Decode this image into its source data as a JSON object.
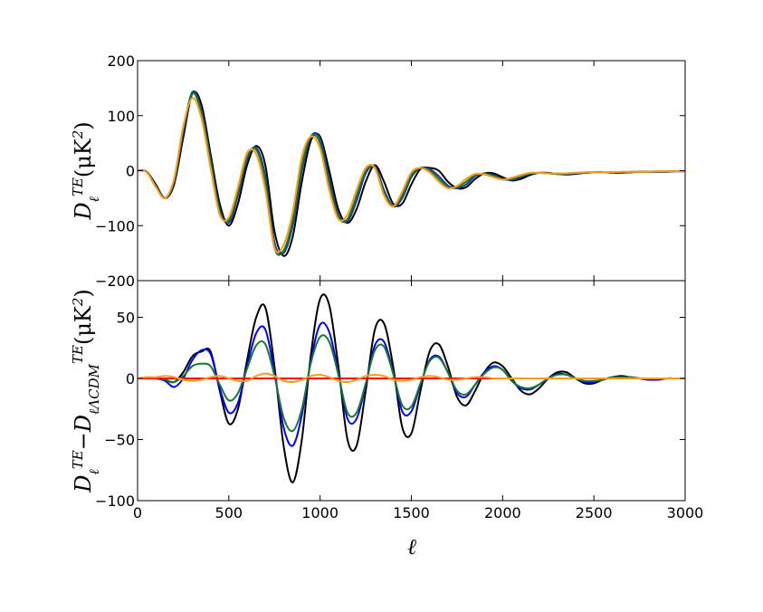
{
  "chart_data": [
    {
      "type": "line",
      "ylabel": [
        {
          "text": "D"
        },
        {
          "text": "ℓ",
          "script": "sub"
        },
        {
          "text": "TE",
          "script": "sup"
        },
        {
          "text": "(μK"
        },
        {
          "text": "2",
          "script": "sup"
        },
        {
          "text": ")"
        }
      ],
      "x": [
        0,
        50,
        100,
        150,
        200,
        250,
        300,
        350,
        400,
        450,
        500,
        550,
        600,
        650,
        700,
        750,
        800,
        850,
        900,
        950,
        1000,
        1050,
        1100,
        1150,
        1200,
        1250,
        1300,
        1350,
        1400,
        1450,
        1500,
        1550,
        1600,
        1650,
        1700,
        1750,
        1800,
        1850,
        1900,
        1950,
        2000,
        2050,
        2100,
        2150,
        2200,
        2250,
        2300,
        2350,
        2400,
        2450,
        2500,
        2550,
        2600,
        2650,
        2700,
        2750,
        2800,
        2850,
        2900,
        2950,
        3000
      ],
      "xlim": [
        0,
        3000
      ],
      "ylim": [
        -200,
        200
      ],
      "yticks": [
        {
          "value": -200,
          "label": "−200"
        },
        {
          "value": -100,
          "label": "−100"
        },
        0,
        100,
        200
      ],
      "series": [
        {
          "color": "#000000",
          "values": [
            0,
            -2,
            -25,
            -50,
            -25,
            60,
            140,
            120,
            30,
            -60,
            -100,
            -60,
            10,
            45,
            10,
            -110,
            -155,
            -120,
            -20,
            55,
            62,
            0,
            -70,
            -95,
            -70,
            -20,
            10,
            -20,
            -60,
            -60,
            -25,
            3,
            5,
            0,
            -20,
            -32,
            -30,
            -15,
            -5,
            -5,
            -12,
            -18,
            -15,
            -8,
            -4,
            -4,
            -6,
            -7,
            -6,
            -4,
            -3,
            -3,
            -4,
            -4,
            -3,
            -2,
            -2,
            -2,
            -2,
            -1,
            -1
          ]
        },
        {
          "color": "#1a3a9a",
          "values": [
            0,
            -2,
            -27,
            -50,
            -20,
            70,
            143,
            110,
            20,
            -70,
            -95,
            -45,
            20,
            42,
            -10,
            -130,
            -150,
            -100,
            0,
            62,
            58,
            -15,
            -80,
            -92,
            -55,
            -5,
            8,
            -35,
            -65,
            -50,
            -12,
            5,
            3,
            -10,
            -27,
            -32,
            -25,
            -10,
            -5,
            -8,
            -15,
            -17,
            -12,
            -6,
            -4,
            -5,
            -6,
            -6,
            -5,
            -4,
            -3,
            -3,
            -3,
            -3,
            -3,
            -2,
            -2,
            -2,
            -1,
            -1,
            -1
          ]
        },
        {
          "color": "#1a7a2a",
          "values": [
            0,
            -2,
            -28,
            -50,
            -18,
            75,
            140,
            105,
            15,
            -75,
            -90,
            -38,
            25,
            38,
            -20,
            -140,
            -145,
            -90,
            10,
            63,
            50,
            -25,
            -85,
            -88,
            -45,
            0,
            5,
            -40,
            -65,
            -45,
            -8,
            5,
            0,
            -15,
            -30,
            -30,
            -20,
            -8,
            -6,
            -10,
            -16,
            -15,
            -10,
            -5,
            -4,
            -5,
            -6,
            -5,
            -4,
            -3,
            -3,
            -3,
            -3,
            -3,
            -2,
            -2,
            -2,
            -1,
            -1,
            -1,
            -1
          ]
        },
        {
          "color": "#ff9a1a",
          "values": [
            0,
            -3,
            -30,
            -50,
            -15,
            80,
            132,
            95,
            5,
            -80,
            -85,
            -30,
            32,
            30,
            -35,
            -140,
            -135,
            -75,
            25,
            62,
            40,
            -35,
            -88,
            -80,
            -35,
            5,
            5,
            -45,
            -65,
            -38,
            -3,
            5,
            -3,
            -20,
            -32,
            -28,
            -15,
            -6,
            -7,
            -12,
            -16,
            -13,
            -8,
            -4,
            -4,
            -5,
            -5,
            -5,
            -4,
            -3,
            -3,
            -3,
            -3,
            -2,
            -2,
            -2,
            -2,
            -1,
            -1,
            -1,
            -1
          ]
        }
      ]
    },
    {
      "type": "line",
      "ylabel": [
        {
          "text": "D"
        },
        {
          "text": "ℓ",
          "script": "sub"
        },
        {
          "text": "TE",
          "script": "sup"
        },
        {
          "text": "−D"
        },
        {
          "text": "ℓ",
          "script": "sub"
        },
        {
          "text": "ΛCDM",
          "script": "sub"
        },
        {
          "text": "TE",
          "script": "sup"
        },
        {
          "text": "(μK"
        },
        {
          "text": "2",
          "script": "sup"
        },
        {
          "text": ")"
        }
      ],
      "xlabel": "ℓ",
      "x": [
        0,
        50,
        100,
        150,
        200,
        250,
        300,
        350,
        400,
        450,
        500,
        550,
        600,
        650,
        700,
        750,
        800,
        850,
        900,
        950,
        1000,
        1050,
        1100,
        1150,
        1200,
        1250,
        1300,
        1350,
        1400,
        1450,
        1500,
        1550,
        1600,
        1650,
        1700,
        1750,
        1800,
        1850,
        1900,
        1950,
        2000,
        2050,
        2100,
        2150,
        2200,
        2250,
        2300,
        2350,
        2400,
        2450,
        2500,
        2550,
        2600,
        2650,
        2700,
        2750,
        2800,
        2850,
        2900,
        2950,
        3000
      ],
      "xlim": [
        0,
        3000
      ],
      "xticks": [
        0,
        500,
        1000,
        1500,
        2000,
        2500,
        3000
      ],
      "ylim": [
        -100,
        80
      ],
      "yticks": [
        {
          "value": -100,
          "label": "−100"
        },
        {
          "value": -50,
          "label": "−50"
        },
        0,
        50
      ],
      "series": [
        {
          "color": "#000000",
          "values": [
            0,
            0,
            0,
            -1,
            -3,
            5,
            18,
            22,
            22,
            -10,
            -37,
            -25,
            15,
            50,
            58,
            10,
            -55,
            -85,
            -50,
            20,
            65,
            60,
            10,
            -50,
            -55,
            -10,
            40,
            45,
            10,
            -40,
            -45,
            -10,
            22,
            28,
            10,
            -15,
            -22,
            -10,
            5,
            13,
            10,
            0,
            -10,
            -13,
            -8,
            0,
            5,
            5,
            0,
            -4,
            -4,
            -1,
            1,
            2,
            1,
            0,
            -1,
            -1,
            0,
            0,
            0
          ]
        },
        {
          "color": "#0000ff",
          "values": [
            0,
            0,
            0,
            -2,
            -7,
            0,
            15,
            23,
            20,
            -8,
            -28,
            -20,
            10,
            37,
            40,
            5,
            -40,
            -55,
            -30,
            15,
            44,
            38,
            5,
            -33,
            -33,
            -5,
            27,
            30,
            5,
            -27,
            -27,
            -5,
            15,
            18,
            5,
            -12,
            -15,
            -5,
            5,
            10,
            7,
            -2,
            -8,
            -9,
            -5,
            0,
            4,
            3,
            0,
            -3,
            -3,
            -1,
            1,
            1,
            1,
            0,
            -1,
            -1,
            0,
            0,
            0
          ]
        },
        {
          "color": "#1a7a2a",
          "values": [
            0,
            0,
            0,
            -1,
            -3,
            2,
            10,
            12,
            10,
            -5,
            -18,
            -12,
            8,
            27,
            28,
            2,
            -32,
            -43,
            -25,
            13,
            34,
            30,
            3,
            -28,
            -28,
            -4,
            23,
            26,
            4,
            -22,
            -23,
            -4,
            14,
            17,
            5,
            -10,
            -13,
            -5,
            4,
            9,
            7,
            -2,
            -7,
            -8,
            -5,
            0,
            3,
            3,
            0,
            -2,
            -2,
            -1,
            1,
            1,
            1,
            0,
            0,
            0,
            0,
            0,
            0
          ]
        },
        {
          "color": "#ff0000",
          "values": [
            0,
            0,
            0,
            0,
            0,
            0,
            0,
            0,
            0,
            0,
            0,
            0,
            0,
            0,
            0,
            0,
            0,
            0,
            0,
            0,
            0,
            0,
            0,
            0,
            0,
            0,
            0,
            0,
            0,
            0,
            0,
            0,
            0,
            0,
            0,
            0,
            0,
            0,
            0,
            0,
            0,
            0,
            0,
            0,
            0,
            0,
            0,
            0,
            0,
            0,
            0,
            0,
            0,
            0,
            0,
            0,
            0,
            0,
            0,
            0,
            0
          ]
        },
        {
          "color": "#ff9a1a",
          "values": [
            0,
            1,
            1,
            2,
            1,
            -1,
            -2,
            -1,
            1,
            2,
            0,
            -2,
            -2,
            2,
            4,
            2,
            -2,
            -3,
            -1,
            2,
            3,
            1,
            -2,
            -3,
            -1,
            2,
            3,
            2,
            -1,
            -2,
            -1,
            1,
            2,
            1,
            -1,
            -1,
            0,
            1,
            1,
            0,
            0,
            0,
            0,
            0,
            0,
            0,
            0,
            0,
            0,
            0,
            0,
            0,
            0,
            0,
            0,
            0,
            0,
            0,
            0,
            0,
            0
          ]
        }
      ]
    }
  ]
}
